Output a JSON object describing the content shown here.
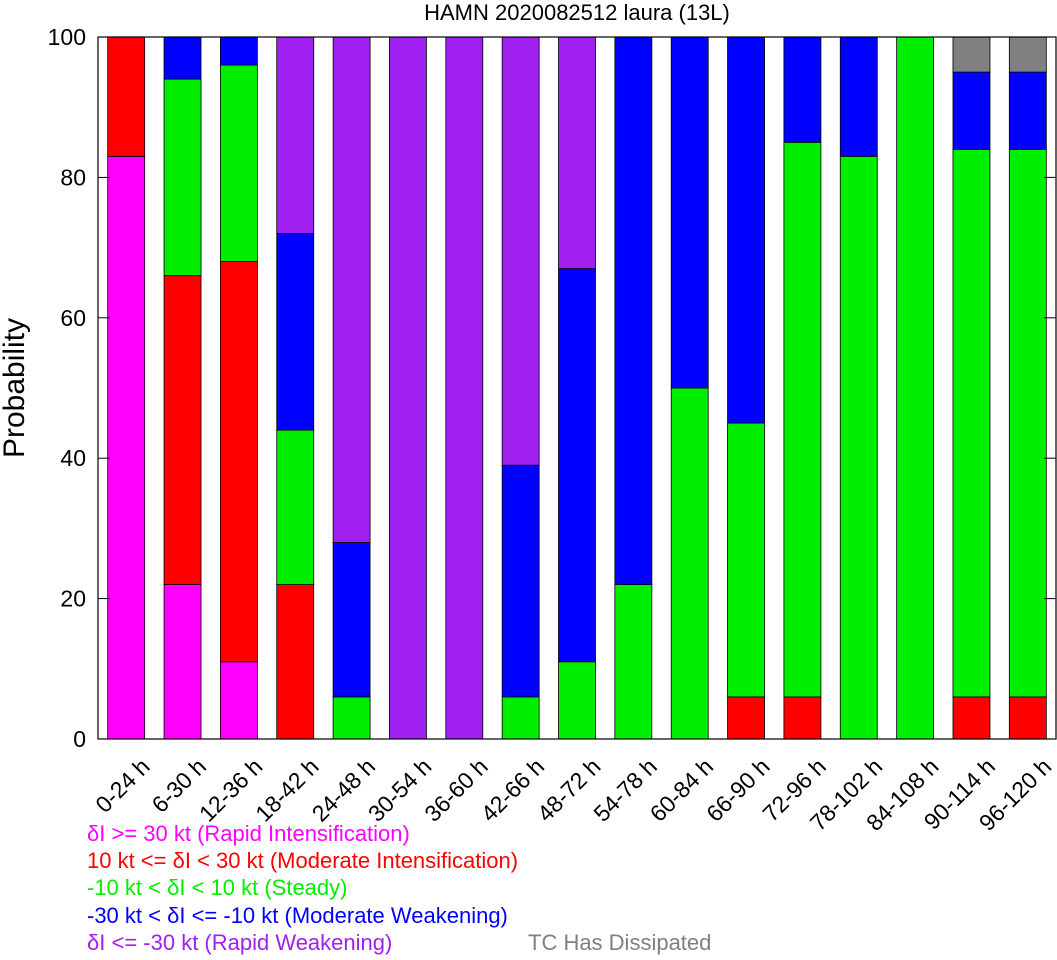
{
  "chart_data": {
    "type": "bar",
    "stacked": true,
    "title": "HAMN 2020082512 laura (13L)",
    "xlabel": "",
    "ylabel": "Probability",
    "ylim": [
      0,
      100
    ],
    "yticks": [
      0,
      20,
      40,
      60,
      80,
      100
    ],
    "grid": false,
    "categories": [
      "0-24 h",
      "6-30 h",
      "12-36 h",
      "18-42 h",
      "24-48 h",
      "30-54 h",
      "36-60 h",
      "42-66 h",
      "48-72 h",
      "54-78 h",
      "60-84 h",
      "66-90 h",
      "72-96 h",
      "78-102 h",
      "84-108 h",
      "90-114 h",
      "96-120 h"
    ],
    "series": [
      {
        "name": "δI >= 30 kt (Rapid Intensification)",
        "color": "#ff00ff",
        "values": [
          83,
          22,
          11,
          0,
          0,
          0,
          0,
          0,
          0,
          0,
          0,
          0,
          0,
          0,
          0,
          0,
          0
        ]
      },
      {
        "name": "10 kt <= δI < 30 kt (Moderate Intensification)",
        "color": "#ff0000",
        "values": [
          17,
          44,
          57,
          22,
          0,
          0,
          0,
          0,
          0,
          0,
          0,
          6,
          6,
          0,
          0,
          6,
          6
        ]
      },
      {
        "name": "-10 kt < δI < 10 kt (Steady)",
        "color": "#00ee00",
        "values": [
          0,
          28,
          28,
          22,
          6,
          0,
          0,
          6,
          11,
          22,
          50,
          39,
          79,
          83,
          100,
          78,
          78
        ]
      },
      {
        "name": "-30 kt < δI <= -10 kt (Moderate Weakening)",
        "color": "#0000ff",
        "values": [
          0,
          6,
          4,
          28,
          22,
          0,
          0,
          33,
          56,
          78,
          50,
          55,
          15,
          17,
          0,
          11,
          11
        ]
      },
      {
        "name": "δI <= -30 kt (Rapid Weakening)",
        "color": "#a020f0",
        "values": [
          0,
          0,
          0,
          28,
          72,
          100,
          100,
          61,
          33,
          0,
          0,
          0,
          0,
          0,
          0,
          0,
          0
        ]
      },
      {
        "name": "TC Has Dissipated",
        "color": "#808080",
        "values": [
          0,
          0,
          0,
          0,
          0,
          0,
          0,
          0,
          0,
          0,
          0,
          0,
          0,
          0,
          0,
          5,
          5
        ]
      }
    ]
  }
}
